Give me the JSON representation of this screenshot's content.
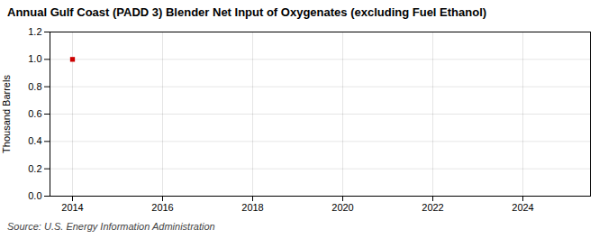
{
  "chart_data": {
    "type": "scatter",
    "title": "Annual Gulf Coast (PADD 3) Blender Net Input of Oxygenates (excluding Fuel Ethanol)",
    "ylabel": "Thousand Barrels",
    "source": "Source: U.S. Energy Information Administration",
    "x": [
      2014
    ],
    "values": [
      1.0
    ],
    "color": "#cc0000",
    "marker": "square",
    "xlim": [
      2013.5,
      2025.5
    ],
    "ylim": [
      0.0,
      1.2
    ],
    "xticks": [
      2014,
      2016,
      2018,
      2020,
      2022,
      2024
    ],
    "yticks": [
      {
        "value": 0.0,
        "label": "0.0"
      },
      0.2,
      0.4,
      0.6,
      0.8,
      {
        "value": 1.0,
        "label": "1.0"
      },
      1.2
    ],
    "grid": true
  }
}
